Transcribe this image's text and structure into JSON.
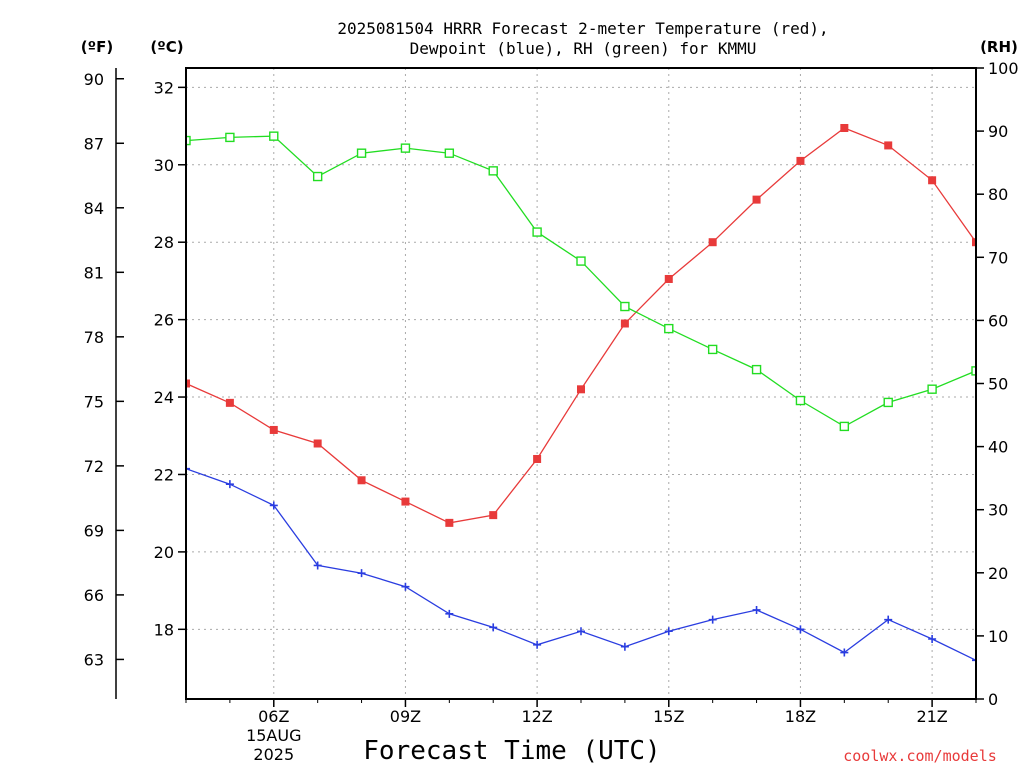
{
  "chart_data": {
    "type": "line",
    "title_line1": "2025081504 HRRR Forecast 2-meter Temperature (red),",
    "title_line2": "Dewpoint (blue), RH (green) for KMMU",
    "xlabel": "Forecast Time (UTC)",
    "credit": "coolwx.com/models",
    "units": {
      "fahrenheit": "(ºF)",
      "celsius": "(ºC)",
      "rh": "(RH)"
    },
    "x_range": [
      4,
      22
    ],
    "x": [
      4,
      5,
      6,
      7,
      8,
      9,
      10,
      11,
      12,
      13,
      14,
      15,
      16,
      17,
      18,
      19,
      20,
      21,
      22
    ],
    "x_ticks": [
      {
        "hour": 6,
        "label": "06Z",
        "date": "15AUG",
        "year": "2025"
      },
      {
        "hour": 9,
        "label": "09Z"
      },
      {
        "hour": 12,
        "label": "12Z"
      },
      {
        "hour": 15,
        "label": "15Z"
      },
      {
        "hour": 18,
        "label": "18Z"
      },
      {
        "hour": 21,
        "label": "21Z"
      }
    ],
    "celsius_axis": {
      "range": [
        16.2,
        32.5
      ],
      "ticks": [
        "18",
        "20",
        "22",
        "24",
        "26",
        "28",
        "30",
        "32"
      ]
    },
    "fahrenheit_axis": {
      "range": [
        61.16,
        90.5
      ],
      "ticks": [
        "63",
        "66",
        "69",
        "72",
        "75",
        "78",
        "81",
        "84",
        "87",
        "90"
      ]
    },
    "rh_axis": {
      "range": [
        0,
        100
      ],
      "ticks": [
        "0",
        "10",
        "20",
        "30",
        "40",
        "50",
        "60",
        "70",
        "80",
        "90",
        "100"
      ]
    },
    "series": [
      {
        "name": "Temperature",
        "axis": "celsius",
        "color": "#e83a3a",
        "marker": "filled-square",
        "values": [
          24.35,
          23.85,
          23.15,
          22.8,
          21.85,
          21.3,
          20.75,
          20.95,
          22.4,
          24.2,
          25.9,
          27.05,
          28.0,
          29.1,
          30.1,
          30.95,
          30.5,
          29.6,
          28.0
        ]
      },
      {
        "name": "Dewpoint",
        "axis": "celsius",
        "color": "#2a3de0",
        "marker": "plus",
        "values": [
          22.15,
          21.75,
          21.2,
          19.65,
          19.45,
          19.1,
          18.4,
          18.05,
          17.6,
          17.95,
          17.55,
          17.95,
          18.25,
          18.5,
          18.0,
          17.4,
          18.25,
          17.75,
          17.2
        ]
      },
      {
        "name": "RH",
        "axis": "rh",
        "color": "#22dd22",
        "marker": "open-square",
        "values": [
          88.5,
          89.0,
          89.2,
          82.8,
          86.5,
          87.3,
          86.5,
          83.7,
          74.0,
          69.4,
          62.2,
          58.7,
          55.4,
          52.2,
          47.3,
          43.2,
          47.0,
          49.1,
          52.0
        ]
      }
    ]
  }
}
